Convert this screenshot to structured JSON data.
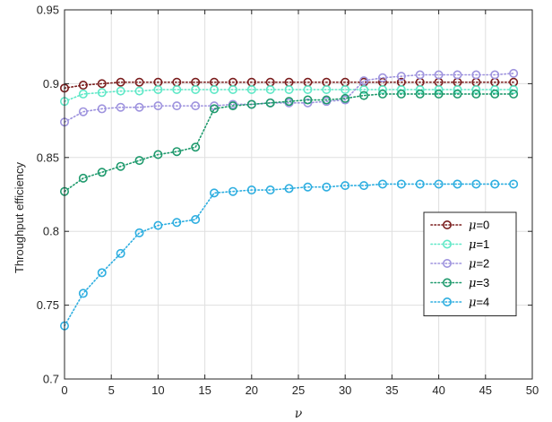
{
  "chart_data": {
    "type": "line",
    "xlabel": "ν",
    "ylabel": "Throughput efficiency",
    "xlim": [
      0,
      50
    ],
    "ylim": [
      0.7,
      0.95
    ],
    "xticks": [
      "0",
      "5",
      "10",
      "15",
      "20",
      "25",
      "30",
      "35",
      "40",
      "45",
      "50"
    ],
    "yticks": [
      "0.7",
      "0.75",
      "0.8",
      "0.85",
      "0.9",
      "0.95"
    ],
    "grid": true,
    "legend_position": "right",
    "marker": "circle",
    "line_style": "dotted",
    "x": [
      0,
      2,
      4,
      6,
      8,
      10,
      12,
      14,
      16,
      18,
      20,
      22,
      24,
      26,
      28,
      30,
      32,
      34,
      36,
      38,
      40,
      42,
      44,
      46,
      48
    ],
    "series": [
      {
        "name": "μ=0",
        "legend_symbol": "μ",
        "legend_value": "=0",
        "color": "#7a1d1d",
        "values": [
          0.897,
          0.899,
          0.9,
          0.901,
          0.901,
          0.901,
          0.901,
          0.901,
          0.901,
          0.901,
          0.901,
          0.901,
          0.901,
          0.901,
          0.901,
          0.901,
          0.901,
          0.901,
          0.901,
          0.901,
          0.901,
          0.901,
          0.901,
          0.901,
          0.901
        ]
      },
      {
        "name": "μ=1",
        "legend_symbol": "μ",
        "legend_value": "=1",
        "color": "#5fe8c7",
        "values": [
          0.888,
          0.893,
          0.894,
          0.895,
          0.895,
          0.896,
          0.896,
          0.896,
          0.896,
          0.896,
          0.896,
          0.896,
          0.896,
          0.896,
          0.896,
          0.896,
          0.896,
          0.896,
          0.896,
          0.896,
          0.896,
          0.896,
          0.896,
          0.896,
          0.896
        ]
      },
      {
        "name": "μ=2",
        "legend_symbol": "μ",
        "legend_value": "=2",
        "color": "#9e93de",
        "values": [
          0.874,
          0.881,
          0.883,
          0.884,
          0.884,
          0.885,
          0.885,
          0.885,
          0.885,
          0.886,
          0.886,
          0.887,
          0.887,
          0.887,
          0.888,
          0.889,
          0.902,
          0.904,
          0.905,
          0.906,
          0.906,
          0.906,
          0.906,
          0.906,
          0.907
        ]
      },
      {
        "name": "μ=3",
        "legend_symbol": "μ",
        "legend_value": "=3",
        "color": "#1f9a6d",
        "values": [
          0.827,
          0.836,
          0.84,
          0.844,
          0.848,
          0.852,
          0.854,
          0.857,
          0.883,
          0.885,
          0.886,
          0.887,
          0.888,
          0.889,
          0.889,
          0.89,
          0.892,
          0.893,
          0.893,
          0.893,
          0.893,
          0.893,
          0.893,
          0.893,
          0.893
        ]
      },
      {
        "name": "μ=4",
        "legend_symbol": "μ",
        "legend_value": "=4",
        "color": "#2eaee0",
        "values": [
          0.736,
          0.758,
          0.772,
          0.785,
          0.799,
          0.804,
          0.806,
          0.808,
          0.826,
          0.827,
          0.828,
          0.828,
          0.829,
          0.83,
          0.83,
          0.831,
          0.831,
          0.832,
          0.832,
          0.832,
          0.832,
          0.832,
          0.832,
          0.832,
          0.832
        ]
      }
    ]
  },
  "colors": {
    "axis": "#262626",
    "grid": "#dfdfdf",
    "background": "#ffffff"
  }
}
